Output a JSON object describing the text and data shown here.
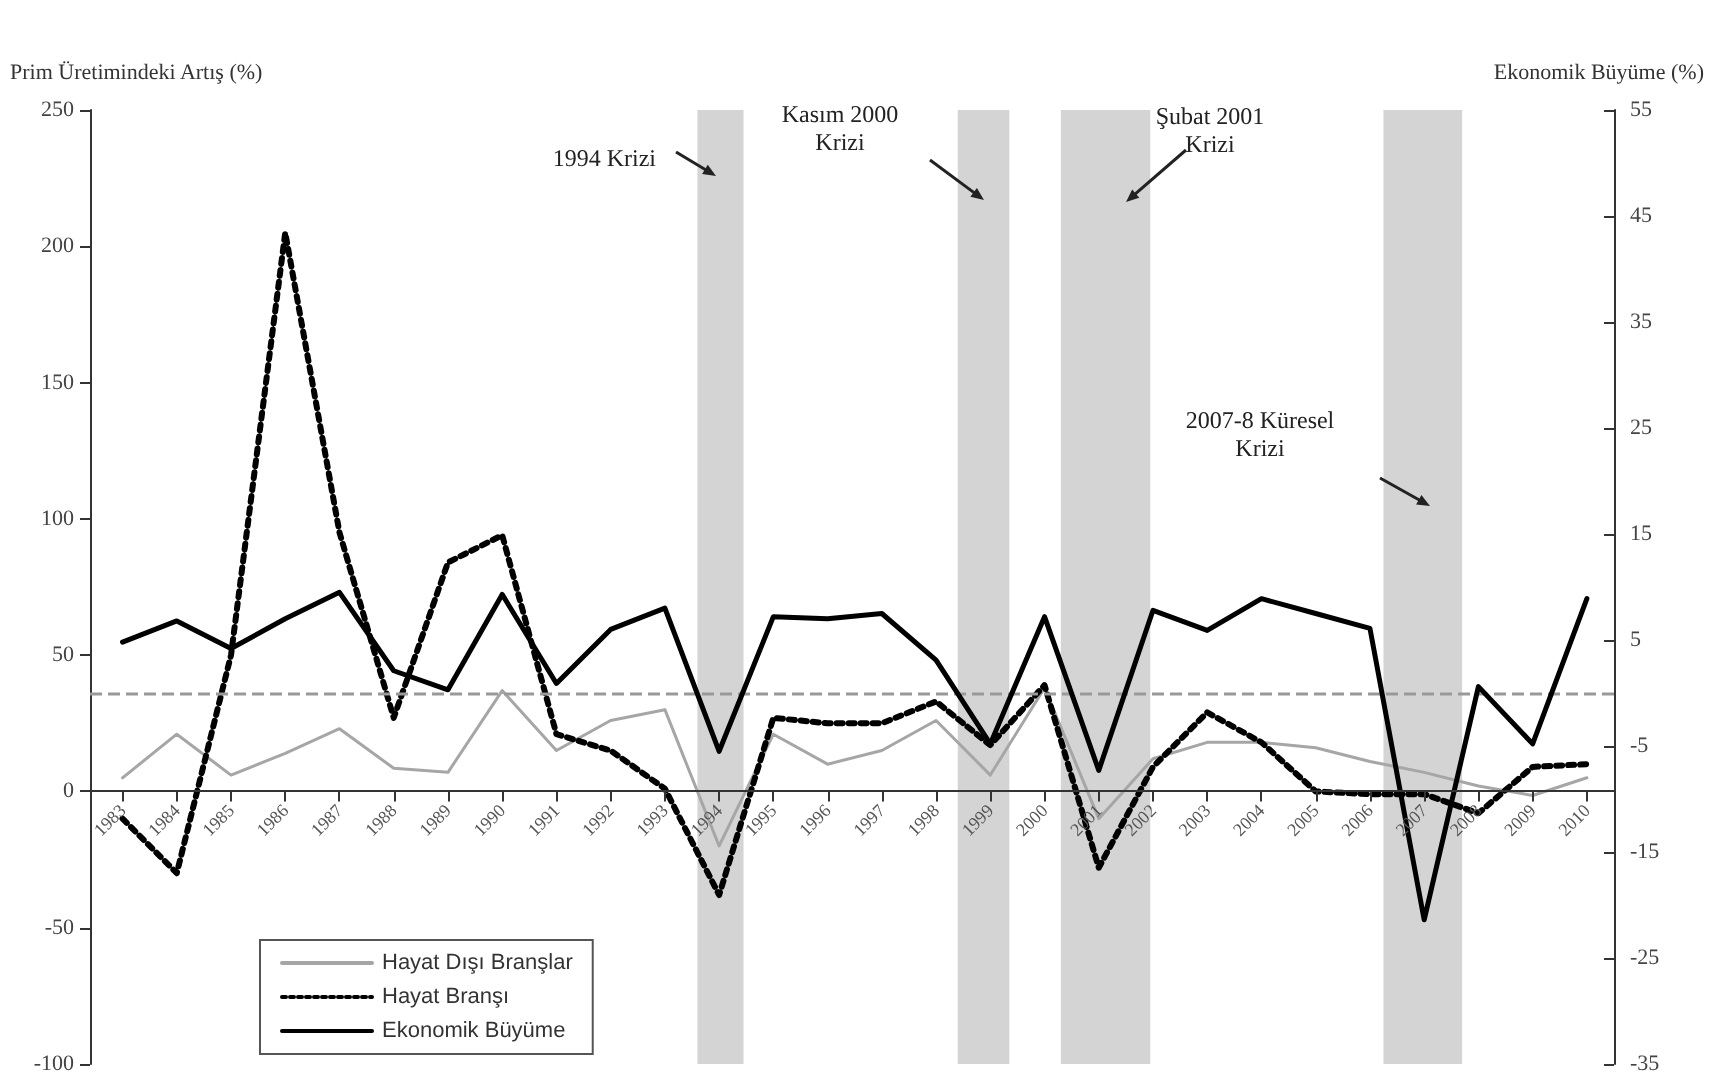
{
  "chart_data": {
    "type": "line",
    "ylabel": "Prim Üretimindeki Artış (%)",
    "y2label": "Ekonomik Büyüme (%)",
    "x": [
      1983,
      1984,
      1985,
      1986,
      1987,
      1988,
      1989,
      1990,
      1991,
      1992,
      1993,
      1994,
      1995,
      1996,
      1997,
      1998,
      1999,
      2000,
      2001,
      2002,
      2003,
      2004,
      2005,
      2006,
      2007,
      2008,
      2009,
      2010
    ],
    "xlim": [
      1982.4,
      2010.5
    ],
    "xticks": [
      1983,
      1984,
      1985,
      1986,
      1987,
      1988,
      1989,
      1990,
      1991,
      1992,
      1993,
      1994,
      1995,
      1996,
      1997,
      1998,
      1999,
      2000,
      2001,
      2002,
      2003,
      2004,
      2005,
      2006,
      2007,
      2008,
      2009,
      2010
    ],
    "ylim": [
      -100,
      250
    ],
    "yticks": [
      -100,
      -50,
      0,
      50,
      100,
      150,
      200,
      250
    ],
    "y2lim": [
      -35,
      55
    ],
    "y2ticks": [
      -35,
      -25,
      -15,
      -5,
      5,
      15,
      25,
      35,
      45,
      55
    ],
    "series": [
      {
        "name": "Hayat Dışı Branşlar",
        "color": "#a6a6a6",
        "line_style": "solid",
        "values": [
          5,
          21,
          6,
          14,
          23,
          8.5,
          7,
          37,
          15,
          26,
          30,
          -20,
          21,
          10,
          15,
          26,
          6,
          38,
          -10,
          12,
          18,
          18,
          16,
          11,
          7,
          2,
          -1.5,
          5
        ]
      },
      {
        "name": "Hayat Branşı",
        "color": "#000000",
        "line_style": "dotted",
        "values": [
          -10,
          -30,
          50,
          205,
          95,
          27,
          84,
          94,
          21,
          15,
          1,
          -38,
          27,
          25,
          25,
          33,
          17,
          39,
          -28,
          9,
          29,
          18,
          0,
          -1,
          -1,
          -8,
          9,
          10
        ]
      },
      {
        "name": "Ekonomik Büyüme",
        "color": "#000000",
        "line_style": "solid",
        "axis": "y2",
        "values": [
          4.8,
          6.8,
          4.2,
          7,
          9.5,
          2.1,
          0.3,
          9.3,
          0.9,
          6,
          8,
          -5.5,
          7.2,
          7,
          7.5,
          3.1,
          -4.8,
          7.2,
          -7.3,
          7.8,
          5.9,
          8.9,
          7.5,
          6.1,
          -21.4,
          0.6,
          -4.8,
          8.9
        ]
      }
    ],
    "ref_lines": [
      {
        "axis": "y2",
        "value": 0,
        "color": "#999999",
        "line_style": "dashed"
      }
    ],
    "bands": [
      {
        "axis": "x",
        "from": 1993.6,
        "to": 1994.45,
        "color": "#d4d4d4"
      },
      {
        "axis": "x",
        "from": 1998.4,
        "to": 1999.35,
        "color": "#d4d4d4"
      },
      {
        "axis": "x",
        "from": 2000.3,
        "to": 2001.95,
        "color": "#d4d4d4"
      },
      {
        "axis": "x",
        "from": 2006.25,
        "to": 2007.7,
        "color": "#d4d4d4"
      }
    ],
    "annotations": [
      "1994 Krizi",
      "Kasım 2000 Krizi",
      "Şubat 2001 Krizi",
      "2007-8 Küresel Krizi"
    ],
    "grid": false,
    "legend": "bottom left",
    "marker": "none"
  }
}
